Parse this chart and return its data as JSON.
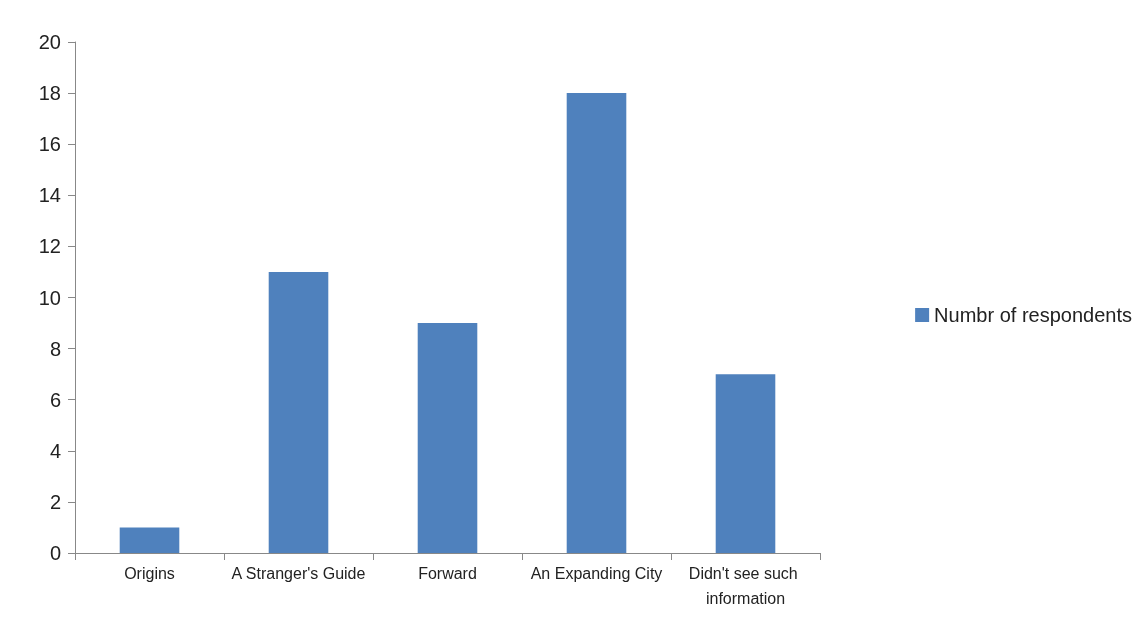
{
  "chart_data": {
    "type": "bar",
    "categories": [
      "Origins",
      "A Stranger's Guide",
      "Forward",
      "An Expanding City",
      "Didn't see such information"
    ],
    "series": [
      {
        "name": "Numbr of respondents",
        "color": "#4f81bd",
        "values": [
          1,
          11,
          9,
          18,
          7
        ]
      }
    ],
    "ylim": [
      0,
      20
    ],
    "yticks": [
      0,
      2,
      4,
      6,
      8,
      10,
      12,
      14,
      16,
      18,
      20
    ],
    "grid": false,
    "legend": "right"
  }
}
